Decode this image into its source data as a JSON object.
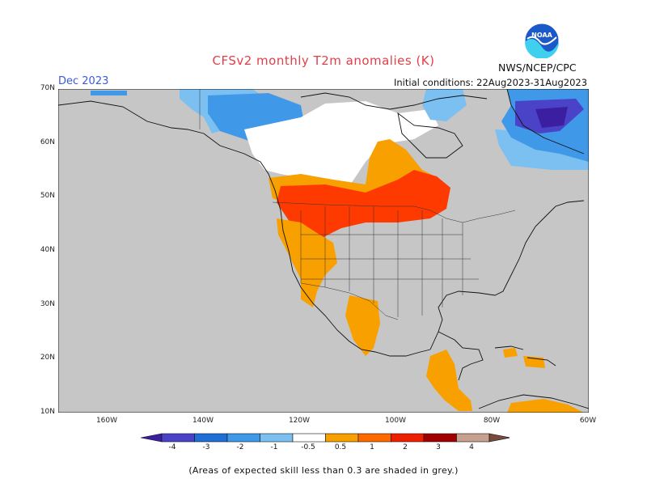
{
  "title": "CFSv2 monthly T2m anomalies (K)",
  "agency": "NWS/NCEP/CPC",
  "month": "Dec 2023",
  "initial_conditions": "Initial conditions: 22Aug2023-31Aug2023",
  "footnote": "(Areas of expected skill less than 0.3 are shaded in grey.)",
  "logo_text": "NOAA",
  "lat_labels": [
    "70N",
    "60N",
    "50N",
    "40N",
    "30N",
    "20N",
    "10N"
  ],
  "lon_labels": [
    "160W",
    "140W",
    "120W",
    "100W",
    "80W",
    "60W"
  ],
  "colorbar": {
    "labels": [
      "-4",
      "-3",
      "-2",
      "-1",
      "-0.5",
      "0.5",
      "1",
      "2",
      "3",
      "4"
    ],
    "colors": [
      "#3b1fa0",
      "#4a43c8",
      "#1f6fd6",
      "#3f98e8",
      "#7cc0f2",
      "#ffffff",
      "#f7a000",
      "#ff6a00",
      "#ee2000",
      "#a00000",
      "#c8a090",
      "#7a4a3a"
    ]
  },
  "map": {
    "background_skill_color": "#c8c8c8",
    "projection_extent": {
      "lon_min": -170,
      "lon_max": -60,
      "lat_min": 10,
      "lat_max": 70
    },
    "anomaly_regions": [
      {
        "name": "alaska-canada-west",
        "category": "-1 to -2",
        "color": "#3f98e8"
      },
      {
        "name": "north-canada",
        "category": "-0.5 to 0.5",
        "color": "#ffffff"
      },
      {
        "name": "greenland",
        "category": "-2 to -4",
        "color": "#4a43c8"
      },
      {
        "name": "southern-canada",
        "category": "0.5 to 1",
        "color": "#f7a000"
      },
      {
        "name": "northern-us",
        "category": "1 to 2",
        "color": "#ff3a00"
      },
      {
        "name": "central-america",
        "category": "0.5 to 1",
        "color": "#f7a000"
      }
    ]
  }
}
